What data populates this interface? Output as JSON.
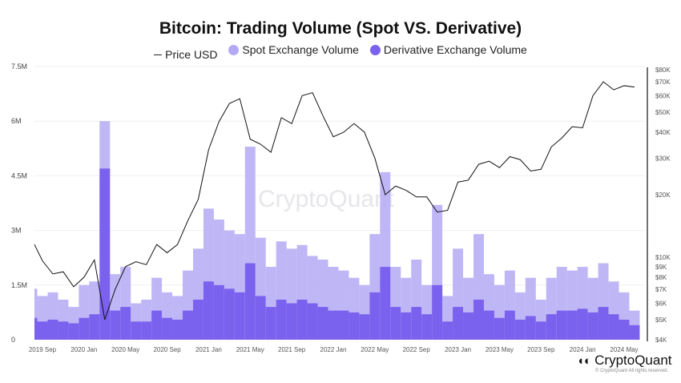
{
  "chart_data": {
    "type": "bar+line",
    "title": "Bitcoin: Trading Volume (Spot VS. Derivative)",
    "legend": [
      "Price USD",
      "Spot Exchange Volume",
      "Derivative Exchange Volume"
    ],
    "legend_placement": "top-center",
    "colors": {
      "price": "#111111",
      "spot": "#b4a9f5",
      "derivative": "#7b62ee"
    },
    "left_axis": {
      "ticks": [
        "0",
        "1.5M",
        "3M",
        "4.5M",
        "6M",
        "7.5M"
      ],
      "range": [
        0,
        7500000
      ]
    },
    "right_axis": {
      "scale": "log",
      "ticks": [
        "$4K",
        "$5K",
        "$6K",
        "$7K",
        "$8K",
        "$9K",
        "$10K",
        "$20K",
        "$30K",
        "$40K",
        "$50K",
        "$60K",
        "$70K",
        "$80K"
      ],
      "tick_values": [
        4000,
        5000,
        6000,
        7000,
        8000,
        9000,
        10000,
        20000,
        30000,
        40000,
        50000,
        60000,
        70000,
        80000
      ],
      "range": [
        4000,
        80000
      ]
    },
    "x_ticks": [
      "2019 Sep",
      "2020 Jan",
      "2020 May",
      "2020 Sep",
      "2021 Jan",
      "2021 May",
      "2021 Sep",
      "2022 Jan",
      "2022 May",
      "2022 Sep",
      "2023 Jan",
      "2023 May",
      "2023 Sep",
      "2024 Jan",
      "2024 May"
    ],
    "dates": [
      "2019-08",
      "2019-09",
      "2019-10",
      "2019-11",
      "2019-12",
      "2020-01",
      "2020-02",
      "2020-03",
      "2020-04",
      "2020-05",
      "2020-06",
      "2020-07",
      "2020-08",
      "2020-09",
      "2020-10",
      "2020-11",
      "2020-12",
      "2021-01",
      "2021-02",
      "2021-03",
      "2021-04",
      "2021-05",
      "2021-06",
      "2021-07",
      "2021-08",
      "2021-09",
      "2021-10",
      "2021-11",
      "2021-12",
      "2022-01",
      "2022-02",
      "2022-03",
      "2022-04",
      "2022-05",
      "2022-06",
      "2022-07",
      "2022-08",
      "2022-09",
      "2022-10",
      "2022-11",
      "2022-12",
      "2023-01",
      "2023-02",
      "2023-03",
      "2023-04",
      "2023-05",
      "2023-06",
      "2023-07",
      "2023-08",
      "2023-09",
      "2023-10",
      "2023-11",
      "2023-12",
      "2024-01",
      "2024-02",
      "2024-03",
      "2024-04",
      "2024-05",
      "2024-06"
    ],
    "price_usd": [
      11500,
      9600,
      8300,
      8500,
      7200,
      8000,
      9700,
      5000,
      7000,
      9000,
      9500,
      9200,
      11500,
      10500,
      11500,
      15000,
      19000,
      33000,
      45000,
      55000,
      58000,
      37000,
      35000,
      32000,
      47000,
      44000,
      60000,
      62000,
      48000,
      38000,
      40000,
      44000,
      40000,
      30000,
      20000,
      22000,
      21000,
      19500,
      19500,
      16500,
      16800,
      23000,
      23500,
      28000,
      29000,
      27000,
      30500,
      29500,
      26000,
      26500,
      34000,
      37500,
      42500,
      42000,
      60000,
      70000,
      64000,
      67000,
      66000
    ],
    "spot_volume": [
      1400000,
      1200000,
      1300000,
      1100000,
      900000,
      1500000,
      1600000,
      6000000,
      1800000,
      2000000,
      1000000,
      1100000,
      1700000,
      1300000,
      1200000,
      1900000,
      2500000,
      3600000,
      3300000,
      3000000,
      2900000,
      5300000,
      2800000,
      2000000,
      2700000,
      2500000,
      2600000,
      2300000,
      2200000,
      2000000,
      1900000,
      1700000,
      1500000,
      2900000,
      4600000,
      2000000,
      1700000,
      2200000,
      1500000,
      3700000,
      1200000,
      2500000,
      1700000,
      2900000,
      1800000,
      1500000,
      1900000,
      1300000,
      1700000,
      1100000,
      1700000,
      2000000,
      1900000,
      2000000,
      1700000,
      2100000,
      1600000,
      1300000,
      800000
    ],
    "derivative_volume": [
      600000,
      500000,
      550000,
      500000,
      450000,
      600000,
      700000,
      4700000,
      800000,
      900000,
      500000,
      500000,
      800000,
      600000,
      550000,
      800000,
      1100000,
      1600000,
      1500000,
      1400000,
      1300000,
      2100000,
      1200000,
      900000,
      1100000,
      1000000,
      1100000,
      1000000,
      900000,
      800000,
      800000,
      750000,
      700000,
      1300000,
      2000000,
      900000,
      750000,
      900000,
      700000,
      1500000,
      500000,
      900000,
      750000,
      1100000,
      800000,
      600000,
      800000,
      550000,
      650000,
      500000,
      700000,
      800000,
      800000,
      850000,
      750000,
      900000,
      700000,
      550000,
      400000
    ]
  },
  "watermark": "CryptoQuant",
  "footer": {
    "logo": "CryptoQuant",
    "copyright": "© CryptoQuant All rights reserved."
  }
}
